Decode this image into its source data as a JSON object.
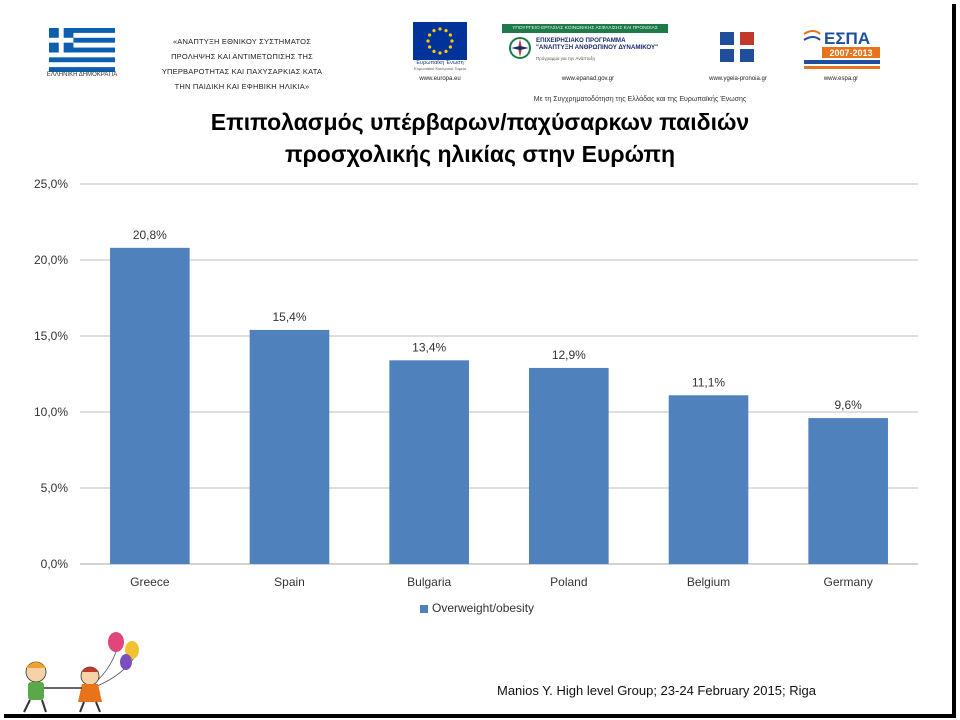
{
  "header": {
    "greek_republic_label": "ΕΛΛΗΝΙΚΗ ΔΗΜΟΚΡΑΤΙΑ",
    "program_title_lines": [
      "«ΑΝΑΠΤΥΞΗ ΕΘΝΙΚΟΥ ΣΥΣΤΗΜΑΤΟΣ",
      "ΠΡΟΛΗΨΗΣ ΚΑΙ ΑΝΤΙΜΕΤΩΠΙΣΗΣ ΤΗΣ",
      "ΥΠΕΡΒΑΡΟΤΗΤΑΣ ΚΑΙ ΠΑΧΥΣΑΡΚΙΑΣ ΚΑΤΑ",
      "ΤΗΝ ΠΑΙΔΙΚΗ ΚΑΙ ΕΦΗΒΙΚΗ ΗΛΙΚΙΑ»"
    ],
    "eu_label": "Ευρωπαϊκή Ένωση",
    "eu_sublabel": "Ευρωπαϊκό Κοινωνικό Ταμείο",
    "eu_url": "www.europa.eu",
    "ep_top": "ΥΠΟΥΡΓΕΙΟ ΕΡΓΑΣΙΑΣ ΚΟΙΝΩΝΙΚΗΣ ΑΣΦΑΛΙΣΗΣ ΚΑΙ ΠΡΟΝΟΙΑΣ",
    "ep_program": "ΕΠΙΧΕΙΡΗΣΙΑΚΟ ΠΡΟΓΡΑΜΜΑ",
    "ep_program_name": "\"ΑΝΑΠΤΥΞΗ ΑΝΘΡΩΠΙΝΟΥ ΔΥΝΑΜΙΚΟΥ\"",
    "ep_sub": "Πρόγραμμα για την Ανάπτυξη",
    "ep_url": "www.epanad.gov.gr",
    "yp_url": "www.ygeia-pronoia.gr",
    "espa_title": "ΕΣΠΑ",
    "espa_years": "2007-2013",
    "espa_url": "www.espa.gr",
    "cofunding": "Με τη Συγχρηματοδότηση της Ελλάδας και της Ευρωπαϊκής Ένωσης",
    "colors": {
      "greek_blue": "#0d5eaf",
      "eu_blue": "#003399",
      "eu_gold": "#ffcc00",
      "espa_orange": "#e8731a",
      "espa_blue": "#1f4e9c"
    }
  },
  "title_lines": [
    "Επιπολασμός υπέρβαρων/παχύσαρκων παιδιών",
    "προσχολικής ηλικίας στην Ευρώπη"
  ],
  "chart_data": {
    "type": "bar",
    "categories": [
      "Greece",
      "Spain",
      "Bulgaria",
      "Poland",
      "Belgium",
      "Germany"
    ],
    "series": [
      {
        "name": "Overweight/obesity",
        "values": [
          20.8,
          15.4,
          13.4,
          12.9,
          11.1,
          9.6
        ]
      }
    ],
    "data_labels": [
      "20,8%",
      "15,4%",
      "13,4%",
      "12,9%",
      "11,1%",
      "9,6%"
    ],
    "ylim": [
      0,
      25
    ],
    "yticks": [
      0,
      5,
      10,
      15,
      20,
      25
    ],
    "ytick_labels": [
      "0,0%",
      "5,0%",
      "10,0%",
      "15,0%",
      "20,0%",
      "25,0%"
    ],
    "grid": true,
    "legend_position": "bottom",
    "bar_color": "#4f81bd"
  },
  "legend_label": "Overweight/obesity",
  "source": "Manios Y. High level Group; 23-24 February 2015; Riga"
}
